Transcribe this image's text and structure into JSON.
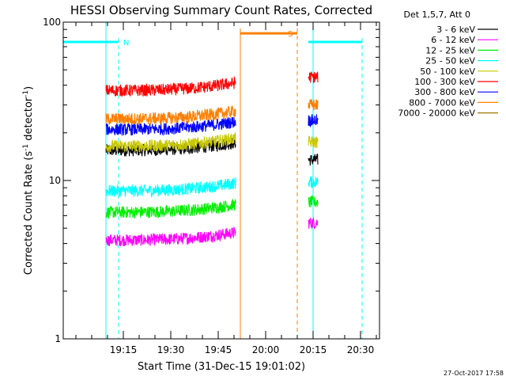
{
  "chart_data": {
    "type": "line",
    "title": "HESSI Observing Summary Count Rates, Corrected",
    "xlabel": "Start Time (31-Dec-15 19:01:02)",
    "ylabel": "Corrected Count Rate (s",
    "ylabel_sup": "-1",
    "ylabel_mid": " detector",
    "ylabel_end": ")",
    "x_ticks": [
      "19:15",
      "19:30",
      "19:45",
      "20:00",
      "20:15",
      "20:30"
    ],
    "x_tick_minutes": [
      19.0,
      34.0,
      49.0,
      64.0,
      79.0,
      94.0
    ],
    "xlim_minutes": [
      0,
      100
    ],
    "y_scale": "log",
    "ylim": [
      1,
      100
    ],
    "y_ticks": [
      1,
      10,
      100
    ],
    "y_tick_labels": [
      "1",
      "10",
      "100"
    ],
    "legend_title": "Det 1,5,7, Att 0",
    "legend_position": "right",
    "series": [
      {
        "name": "3 - 6 keV",
        "color": "#000000",
        "segments": [
          [
            13.5,
            54.5,
            15.5
          ],
          [
            77.5,
            80.5,
            13.5
          ]
        ]
      },
      {
        "name": "6 - 12 keV",
        "color": "#ff00ff",
        "segments": [
          [
            13.5,
            54.5,
            4.2
          ],
          [
            77.5,
            80.5,
            5.4
          ]
        ]
      },
      {
        "name": "12 - 25 keV",
        "color": "#00ee00",
        "segments": [
          [
            13.5,
            54.5,
            6.3
          ],
          [
            77.5,
            80.5,
            7.3
          ]
        ]
      },
      {
        "name": "25 - 50 keV",
        "color": "#00ffff",
        "segments": [
          [
            13.5,
            54.5,
            8.6
          ],
          [
            77.5,
            80.5,
            9.8
          ]
        ]
      },
      {
        "name": "50 - 100 keV",
        "color": "#c8c800",
        "segments": [
          [
            13.5,
            54.5,
            16.5
          ],
          [
            77.5,
            80.5,
            17.5
          ]
        ]
      },
      {
        "name": "100 - 300 keV",
        "color": "#ff0000",
        "segments": [
          [
            13.5,
            54.5,
            37
          ],
          [
            77.5,
            80.5,
            45
          ]
        ]
      },
      {
        "name": "300 - 800 keV",
        "color": "#0000ff",
        "segments": [
          [
            13.5,
            54.5,
            21
          ],
          [
            77.5,
            80.5,
            24
          ]
        ]
      },
      {
        "name": "800 - 7000 keV",
        "color": "#ff7f00",
        "segments": [
          [
            13.5,
            54.5,
            24.5
          ],
          [
            77.5,
            80.5,
            30
          ]
        ]
      },
      {
        "name": "7000 - 20000 keV",
        "color": "#a07800",
        "segments": []
      }
    ],
    "flags": [
      {
        "label": "N",
        "color": "#00ffff",
        "level": 75,
        "bars": [
          [
            0,
            17.5
          ],
          [
            77.5,
            94.5
          ]
        ]
      },
      {
        "label": "S",
        "color": "#ff7f00",
        "level": 85,
        "bars": [
          [
            56,
            74
          ]
        ]
      }
    ],
    "eclipse_boundaries_minutes": [
      13.5,
      79.0
    ],
    "night_edges_minutes": [
      17.5,
      94.5
    ],
    "saa_boundaries_minutes": [
      56.0,
      74.0
    ],
    "timestamp": "27-Oct-2017 17:58"
  }
}
